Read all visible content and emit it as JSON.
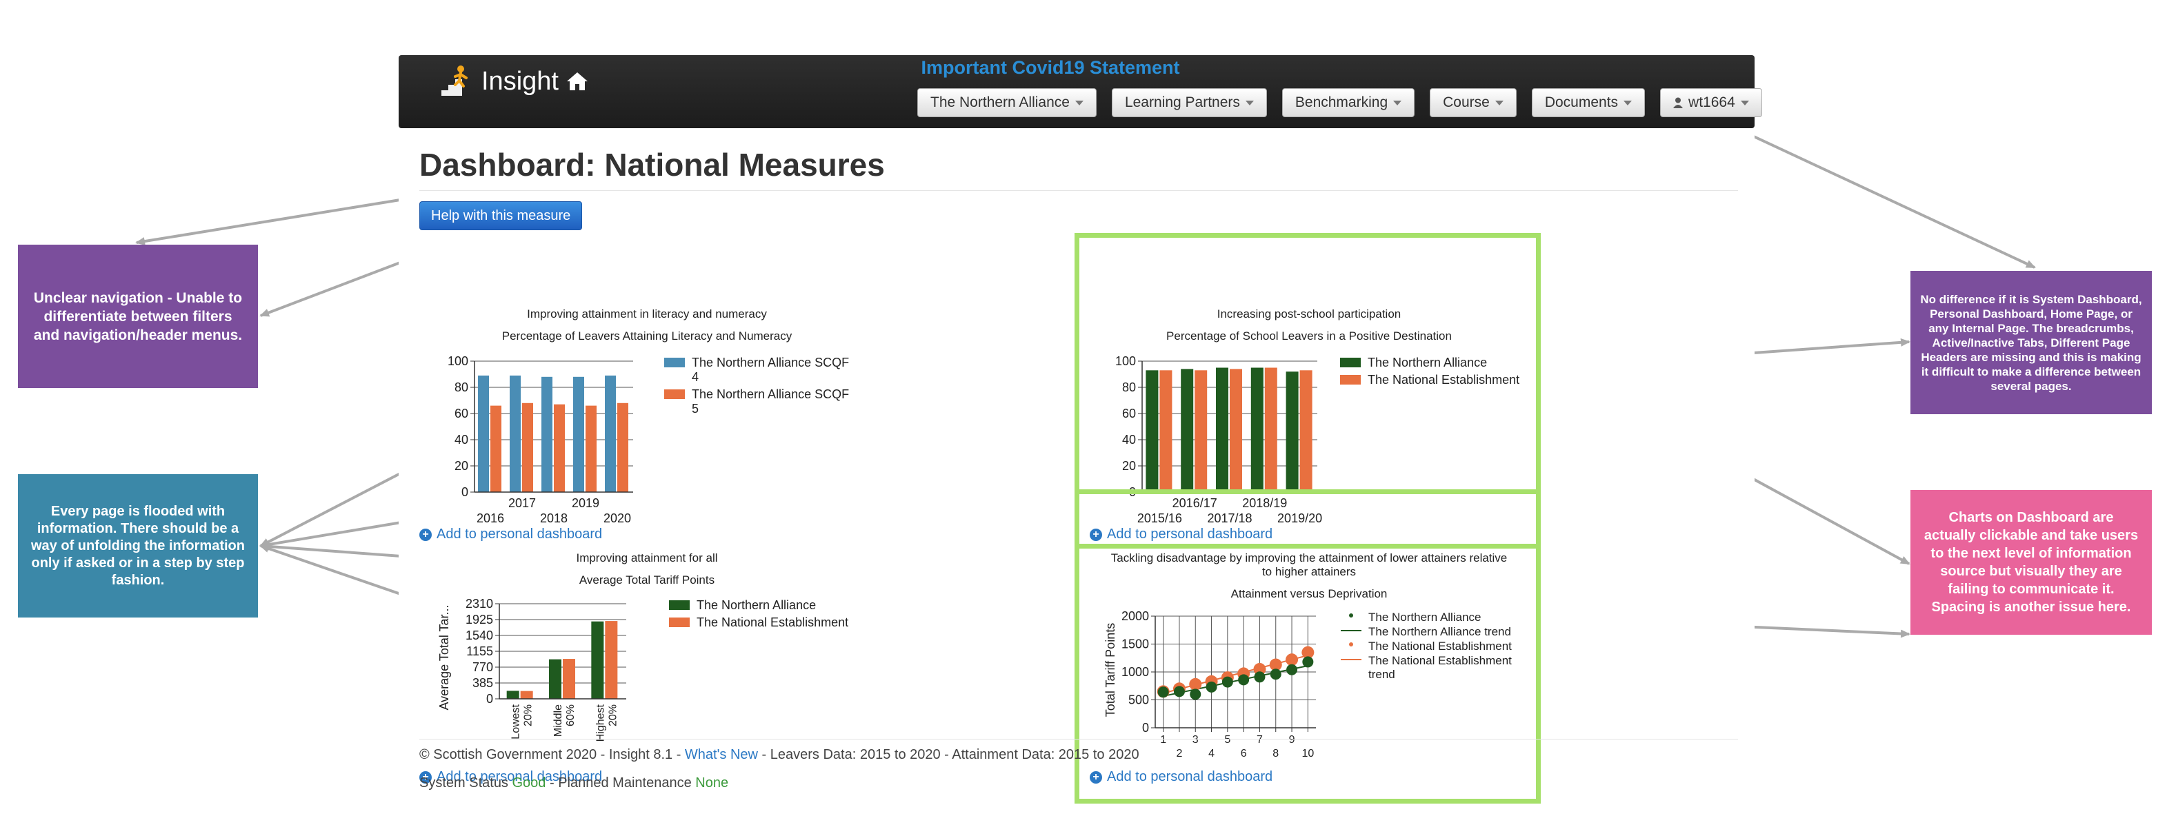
{
  "navbar": {
    "brand": "Insight",
    "covid_link": "Important Covid19 Statement",
    "menu": [
      {
        "label": "The Northern Alliance"
      },
      {
        "label": "Learning Partners"
      },
      {
        "label": "Benchmarking"
      },
      {
        "label": "Course"
      },
      {
        "label": "Documents"
      },
      {
        "label": "wt1664"
      }
    ]
  },
  "page": {
    "title": "Dashboard: National Measures",
    "help_button": "Help with this measure"
  },
  "panels": {
    "literacy": {
      "title": "Improving attainment in literacy and numeracy",
      "subtitle": "Percentage of Leavers Attaining Literacy and Numeracy",
      "add_link": "Add to personal dashboard"
    },
    "post_school": {
      "title": "Increasing post-school participation",
      "subtitle": "Percentage of School Leavers in a Positive Destination",
      "add_link": "Add to personal dashboard"
    },
    "attainment_all": {
      "title": "Improving attainment for all",
      "subtitle": "Average Total Tariff Points",
      "add_link": "Add to personal dashboard"
    },
    "disadvantage": {
      "title": "Tackling disadvantage by improving the attainment of lower attainers relative to higher attainers",
      "subtitle": "Attainment versus Deprivation",
      "add_link": "Add to personal dashboard"
    }
  },
  "chart_data": [
    {
      "type": "bar",
      "title": "Improving attainment in literacy and numeracy",
      "subtitle": "Percentage of Leavers Attaining Literacy and Numeracy",
      "categories": [
        "2016",
        "2017",
        "2018",
        "2019",
        "2020"
      ],
      "series": [
        {
          "name": "The Northern Alliance SCQF 4",
          "color": "#4a8db5",
          "values": [
            89,
            89,
            88,
            88,
            89
          ]
        },
        {
          "name": "The Northern Alliance SCQF 5",
          "color": "#e8703f",
          "values": [
            66,
            68,
            67,
            66,
            68
          ]
        }
      ],
      "ylim": [
        0,
        100
      ],
      "yticks": [
        0,
        20,
        40,
        60,
        80,
        100
      ],
      "legend": "right"
    },
    {
      "type": "bar",
      "title": "Increasing post-school participation",
      "subtitle": "Percentage of School Leavers in a Positive Destination",
      "categories": [
        "2015/16",
        "2016/17",
        "2017/18",
        "2018/19",
        "2019/20"
      ],
      "series": [
        {
          "name": "The Northern Alliance",
          "color": "#1f5a1f",
          "values": [
            93,
            94,
            95,
            95,
            92
          ]
        },
        {
          "name": "The National Establishment",
          "color": "#e8703f",
          "values": [
            93,
            93,
            94,
            95,
            93
          ]
        }
      ],
      "ylim": [
        0,
        100
      ],
      "yticks": [
        0,
        20,
        40,
        60,
        80,
        100
      ],
      "legend": "right"
    },
    {
      "type": "bar",
      "title": "Improving attainment for all",
      "subtitle": "Average Total Tariff Points",
      "ylabel": "Average Total Tar...",
      "categories": [
        "Lowest 20%",
        "Middle 60%",
        "Highest 20%"
      ],
      "series": [
        {
          "name": "The Northern Alliance",
          "color": "#1f5a1f",
          "values": [
            195,
            960,
            1880
          ]
        },
        {
          "name": "The National Establishment",
          "color": "#e8703f",
          "values": [
            190,
            970,
            1890
          ]
        }
      ],
      "ylim": [
        0,
        2310
      ],
      "yticks": [
        0,
        385,
        770,
        1155,
        1540,
        1925,
        2310
      ],
      "legend": "right"
    },
    {
      "type": "scatter",
      "title": "Tackling disadvantage by improving the attainment of lower attainers relative to higher attainers",
      "subtitle": "Attainment versus Deprivation",
      "ylabel": "Total Tariff Points",
      "x": [
        1,
        2,
        3,
        4,
        5,
        6,
        7,
        8,
        9,
        10
      ],
      "series": [
        {
          "name": "The Northern Alliance",
          "color": "#1f5a1f",
          "values": [
            640,
            650,
            600,
            730,
            820,
            860,
            910,
            960,
            1040,
            1180
          ]
        },
        {
          "name": "The Northern Alliance trend",
          "color": "#1f5a1f",
          "trend": true
        },
        {
          "name": "The National Establishment",
          "color": "#e8703f",
          "values": [
            650,
            700,
            780,
            830,
            900,
            970,
            1050,
            1130,
            1220,
            1350
          ]
        },
        {
          "name": "The National Establishment trend",
          "color": "#e8703f",
          "trend": true
        }
      ],
      "xlim": [
        0.5,
        10.5
      ],
      "ylim": [
        0,
        2000
      ],
      "yticks": [
        0,
        500,
        1000,
        1500,
        2000
      ],
      "legend": "right"
    }
  ],
  "footer": {
    "copyright": "© Scottish Government 2020 - Insight 8.1 - ",
    "whats_new": "What's New",
    "data_text": " - Leavers Data: 2015 to 2020 - Attainment Data: 2015 to 2020",
    "status_label": "System Status ",
    "status_value": "Good",
    "maintenance_label": " - Planned Maintenance ",
    "maintenance_value": "None"
  },
  "annotations": {
    "navigation": {
      "text": "Unclear navigation - Unable to differentiate between filters and navigation/header menus.",
      "color": "#7b4e9c"
    },
    "flooded": {
      "text": "Every page is flooded with information. There should be a way of unfolding the information only if asked or in a step by step fashion.",
      "color": "#3b88a8"
    },
    "headers": {
      "text": "No difference if it is System Dashboard, Personal Dashboard, Home Page, or any Internal Page. The breadcrumbs, Active/Inactive Tabs, Different Page Headers are missing and this is making it difficult to make a difference between several pages.",
      "color": "#7b4e9c"
    },
    "clickable": {
      "text": "Charts on Dashboard are actually clickable and take users to the next level of information source but visually they are failing to communicate it. Spacing is another issue here.",
      "color": "#e9649b"
    }
  }
}
